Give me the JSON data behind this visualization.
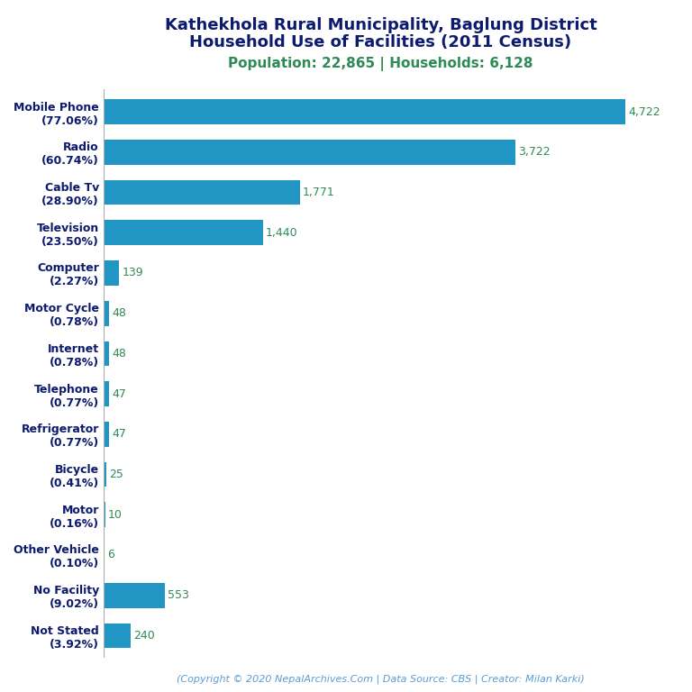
{
  "title_line1": "Kathekhola Rural Municipality, Baglung District",
  "title_line2": "Household Use of Facilities (2011 Census)",
  "subtitle": "Population: 22,865 | Households: 6,128",
  "footer": "(Copyright © 2020 NepalArchives.Com | Data Source: CBS | Creator: Milan Karki)",
  "categories": [
    "Mobile Phone\n(77.06%)",
    "Radio\n(60.74%)",
    "Cable Tv\n(28.90%)",
    "Television\n(23.50%)",
    "Computer\n(2.27%)",
    "Motor Cycle\n(0.78%)",
    "Internet\n(0.78%)",
    "Telephone\n(0.77%)",
    "Refrigerator\n(0.77%)",
    "Bicycle\n(0.41%)",
    "Motor\n(0.16%)",
    "Other Vehicle\n(0.10%)",
    "No Facility\n(9.02%)",
    "Not Stated\n(3.92%)"
  ],
  "values": [
    4722,
    3722,
    1771,
    1440,
    139,
    48,
    48,
    47,
    47,
    25,
    10,
    6,
    553,
    240
  ],
  "bar_color": "#2196c4",
  "value_color": "#2e8b57",
  "title_color": "#0d1b6e",
  "subtitle_color": "#2e8b57",
  "footer_color": "#5b9bd5",
  "background_color": "#ffffff",
  "xlim": [
    0,
    5200
  ],
  "bar_height": 0.62,
  "title_fontsize": 13,
  "subtitle_fontsize": 11,
  "label_fontsize": 9,
  "value_fontsize": 9,
  "footer_fontsize": 8
}
